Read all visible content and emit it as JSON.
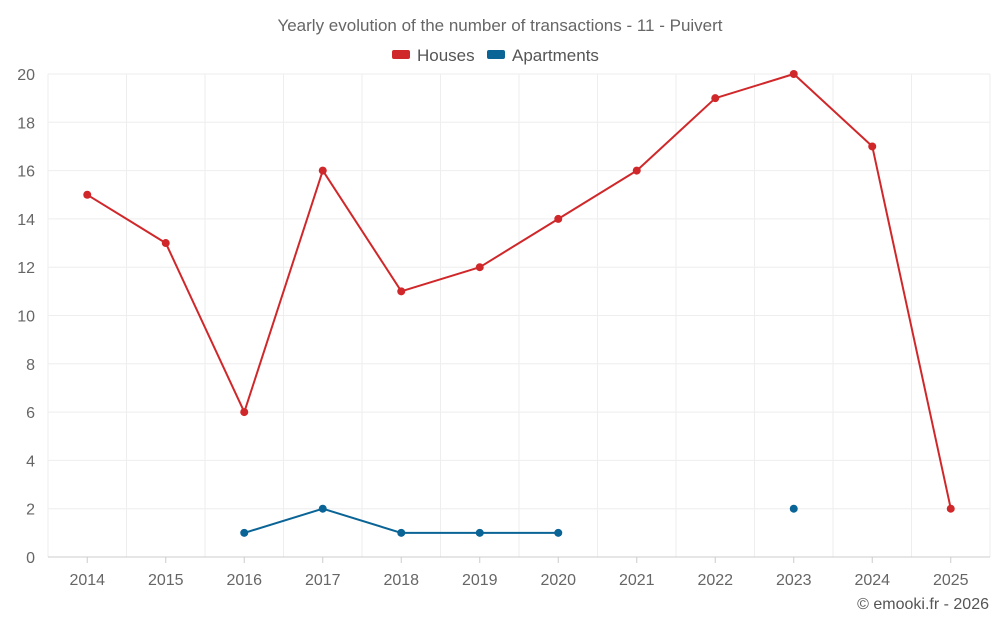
{
  "colors": {
    "houses": "#d0282a",
    "apartments": "#0a6496",
    "grid": "#eeeeee",
    "text": "#666666"
  },
  "credit": "© emooki.fr - 2026",
  "chart_data": {
    "type": "line",
    "title": "Yearly evolution of the number of transactions - 11 - Puivert",
    "xlabel": "",
    "ylabel": "",
    "categories": [
      "2014",
      "2015",
      "2016",
      "2017",
      "2018",
      "2019",
      "2020",
      "2021",
      "2022",
      "2023",
      "2024",
      "2025"
    ],
    "ylim": [
      0,
      20
    ],
    "yticks": [
      "0",
      "2",
      "4",
      "6",
      "8",
      "10",
      "12",
      "14",
      "16",
      "18",
      "20"
    ],
    "grid": true,
    "legend_position": "top-center",
    "series": [
      {
        "name": "Houses",
        "color": "#d0282a",
        "values": [
          15,
          13,
          6,
          16,
          11,
          12,
          14,
          16,
          19,
          20,
          17,
          2
        ]
      },
      {
        "name": "Apartments",
        "color": "#0a6496",
        "values": [
          null,
          null,
          1,
          2,
          1,
          1,
          1,
          null,
          null,
          2,
          null,
          null
        ]
      }
    ]
  }
}
